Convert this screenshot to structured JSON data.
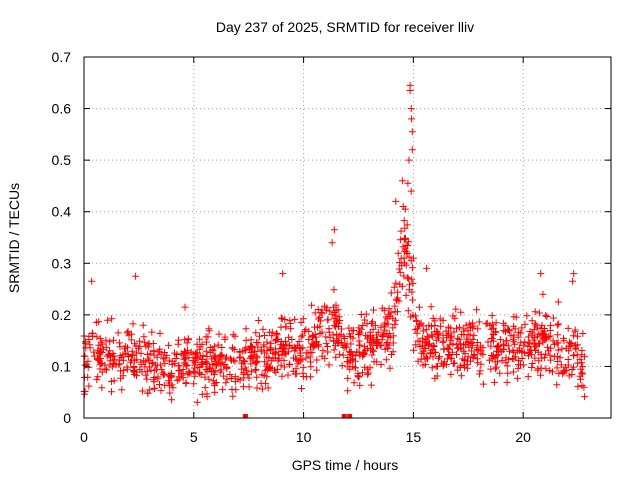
{
  "chart_data": {
    "type": "scatter",
    "title": "Day 237 of 2025, SRMTID for receiver lliv",
    "xlabel": "GPS time / hours",
    "ylabel": "SRMTID / TECUs",
    "xlim": [
      0,
      24
    ],
    "ylim": [
      0,
      0.7
    ],
    "xticks": [
      0,
      5,
      10,
      15,
      20
    ],
    "xtick_labels": [
      "0",
      "5",
      "10",
      "15",
      "20"
    ],
    "yticks": [
      0,
      0.1,
      0.2,
      0.3,
      0.4,
      0.5,
      0.6,
      0.7
    ],
    "ytick_labels": [
      "0",
      "0.1",
      "0.2",
      "0.3",
      "0.4",
      "0.5",
      "0.6",
      "0.7"
    ],
    "grid": true,
    "marker": "+",
    "color": "#ff0000",
    "series": [
      {
        "name": "SRMTID",
        "baseline": [
          [
            0.0,
            0.1
          ],
          [
            0.5,
            0.14
          ],
          [
            1.0,
            0.12
          ],
          [
            2.0,
            0.12
          ],
          [
            3.0,
            0.11
          ],
          [
            4.0,
            0.09
          ],
          [
            4.5,
            0.11
          ],
          [
            5.5,
            0.1
          ],
          [
            6.5,
            0.1
          ],
          [
            7.5,
            0.11
          ],
          [
            8.5,
            0.12
          ],
          [
            9.0,
            0.15
          ],
          [
            10.0,
            0.13
          ],
          [
            11.0,
            0.18
          ],
          [
            11.5,
            0.17
          ],
          [
            12.0,
            0.12
          ],
          [
            13.0,
            0.14
          ],
          [
            14.0,
            0.17
          ],
          [
            14.6,
            0.3
          ],
          [
            15.0,
            0.17
          ],
          [
            15.5,
            0.14
          ],
          [
            16.5,
            0.15
          ],
          [
            18.0,
            0.14
          ],
          [
            19.5,
            0.14
          ],
          [
            20.5,
            0.15
          ],
          [
            21.5,
            0.13
          ],
          [
            22.5,
            0.11
          ],
          [
            22.8,
            0.1
          ]
        ],
        "spikes": [
          {
            "x": 0.35,
            "y": 0.265
          },
          {
            "x": 2.35,
            "y": 0.275
          },
          {
            "x": 4.6,
            "y": 0.215
          },
          {
            "x": 9.05,
            "y": 0.28
          },
          {
            "x": 11.4,
            "y": 0.365
          },
          {
            "x": 11.3,
            "y": 0.34
          },
          {
            "x": 14.2,
            "y": 0.42
          },
          {
            "x": 14.5,
            "y": 0.46
          },
          {
            "x": 14.85,
            "y": 0.645
          },
          {
            "x": 14.85,
            "y": 0.635
          },
          {
            "x": 14.9,
            "y": 0.6
          },
          {
            "x": 14.92,
            "y": 0.58
          },
          {
            "x": 14.95,
            "y": 0.555
          },
          {
            "x": 14.95,
            "y": 0.52
          },
          {
            "x": 14.8,
            "y": 0.5
          },
          {
            "x": 14.75,
            "y": 0.455
          },
          {
            "x": 14.9,
            "y": 0.44
          },
          {
            "x": 15.0,
            "y": 0.31
          },
          {
            "x": 15.6,
            "y": 0.29
          },
          {
            "x": 20.8,
            "y": 0.28
          },
          {
            "x": 22.3,
            "y": 0.28
          },
          {
            "x": 22.25,
            "y": 0.265
          },
          {
            "x": 20.9,
            "y": 0.24
          },
          {
            "x": 21.6,
            "y": 0.225
          }
        ],
        "zeros": [
          7.35,
          11.85,
          12.1
        ]
      }
    ]
  }
}
